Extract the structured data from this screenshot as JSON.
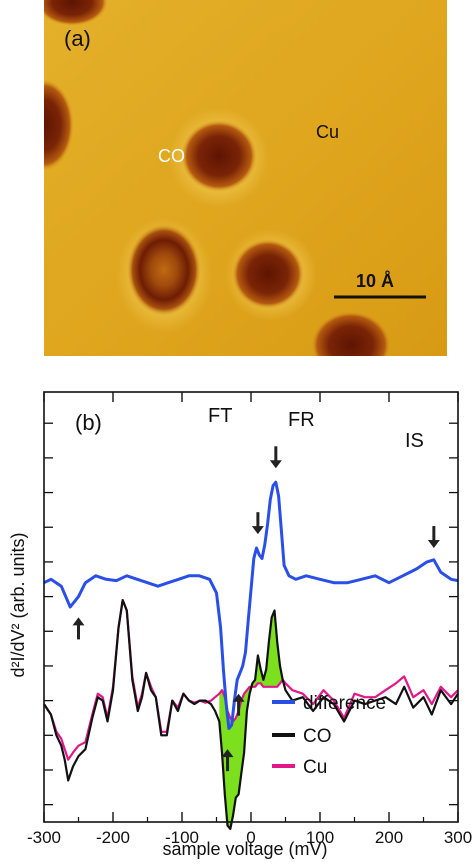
{
  "panel_a": {
    "label": "(a)",
    "co_label": "CO",
    "cu_label": "Cu",
    "scale_label": "10 Å",
    "colors": {
      "background": "#e0a81c",
      "molecule": "#8a2a08",
      "molecule_core": "#6a1a04"
    }
  },
  "chart_data": {
    "type": "line",
    "panel_label": "(b)",
    "xlabel": "sample voltage (mV)",
    "ylabel": "d²I/dV² (arb. units)",
    "xlim": [
      -300,
      300
    ],
    "ylim": [
      -3.0,
      3.2
    ],
    "x_ticks": [
      -300,
      -200,
      -100,
      0,
      100,
      200,
      300
    ],
    "annotations": [
      "FT",
      "FR",
      "IS"
    ],
    "legend": {
      "placement": "bottom-right",
      "entries": [
        "difference",
        "CO",
        "Cu"
      ]
    },
    "series": [
      {
        "name": "difference",
        "color": "#2a4fe6",
        "x": [
          -300,
          -290,
          -275,
          -262,
          -250,
          -240,
          -225,
          -210,
          -195,
          -180,
          -165,
          -150,
          -135,
          -120,
          -105,
          -90,
          -75,
          -60,
          -50,
          -44,
          -40,
          -36,
          -32,
          -28,
          -24,
          -20,
          -16,
          -12,
          -8,
          -4,
          0,
          4,
          8,
          12,
          16,
          20,
          24,
          28,
          32,
          36,
          40,
          44,
          48,
          55,
          65,
          80,
          100,
          120,
          140,
          160,
          180,
          200,
          220,
          240,
          255,
          265,
          275,
          290,
          300
        ],
        "y": [
          0.45,
          0.5,
          0.4,
          0.1,
          0.25,
          0.45,
          0.55,
          0.5,
          0.48,
          0.55,
          0.5,
          0.45,
          0.4,
          0.45,
          0.5,
          0.55,
          0.55,
          0.5,
          0.3,
          -0.2,
          -0.8,
          -1.3,
          -1.65,
          -1.6,
          -1.25,
          -0.95,
          -0.85,
          -0.75,
          -0.55,
          -0.1,
          0.35,
          0.8,
          0.95,
          0.85,
          0.8,
          1.0,
          1.3,
          1.65,
          1.85,
          1.9,
          1.7,
          1.2,
          0.7,
          0.55,
          0.5,
          0.55,
          0.5,
          0.45,
          0.45,
          0.5,
          0.55,
          0.45,
          0.55,
          0.65,
          0.75,
          0.78,
          0.6,
          0.5,
          0.48
        ]
      },
      {
        "name": "CO",
        "color": "#111111",
        "x": [
          -300,
          -290,
          -282,
          -275,
          -270,
          -265,
          -258,
          -250,
          -240,
          -230,
          -222,
          -215,
          -208,
          -200,
          -192,
          -186,
          -180,
          -172,
          -164,
          -158,
          -152,
          -145,
          -138,
          -130,
          -122,
          -114,
          -106,
          -98,
          -90,
          -82,
          -74,
          -66,
          -58,
          -52,
          -46,
          -42,
          -38,
          -34,
          -30,
          -26,
          -22,
          -18,
          -14,
          -10,
          -6,
          -2,
          2,
          6,
          10,
          14,
          18,
          22,
          26,
          30,
          34,
          38,
          42,
          46,
          50,
          60,
          75,
          90,
          105,
          120,
          135,
          150,
          165,
          180,
          195,
          210,
          222,
          235,
          250,
          262,
          275,
          290,
          300
        ],
        "y": [
          -1.3,
          -1.45,
          -1.75,
          -1.9,
          -2.1,
          -2.4,
          -2.2,
          -2.05,
          -1.95,
          -1.5,
          -1.2,
          -1.25,
          -1.55,
          -1.1,
          -0.2,
          0.2,
          0.05,
          -0.95,
          -1.4,
          -1.2,
          -0.85,
          -1.1,
          -1.2,
          -1.75,
          -1.75,
          -1.25,
          -1.4,
          -1.15,
          -1.25,
          -1.3,
          -1.25,
          -1.25,
          -1.3,
          -1.4,
          -1.55,
          -2.0,
          -2.6,
          -3.05,
          -3.1,
          -2.9,
          -2.65,
          -2.6,
          -2.3,
          -2.0,
          -1.4,
          -1.15,
          -1.0,
          -0.95,
          -0.6,
          -0.8,
          -0.95,
          -0.8,
          -0.4,
          -0.05,
          0.05,
          -0.4,
          -0.75,
          -0.95,
          -1.1,
          -1.25,
          -1.2,
          -1.4,
          -1.2,
          -1.3,
          -1.55,
          -1.25,
          -1.3,
          -1.25,
          -1.2,
          -1.3,
          -1.05,
          -1.35,
          -1.2,
          -1.45,
          -1.1,
          -1.3,
          -1.15
        ]
      },
      {
        "name": "Cu",
        "color": "#e2188a",
        "x": [
          -300,
          -290,
          -282,
          -275,
          -270,
          -265,
          -258,
          -250,
          -240,
          -230,
          -222,
          -215,
          -208,
          -200,
          -192,
          -186,
          -180,
          -172,
          -164,
          -158,
          -152,
          -145,
          -138,
          -130,
          -122,
          -114,
          -106,
          -98,
          -90,
          -82,
          -74,
          -66,
          -58,
          -52,
          -46,
          -42,
          -38,
          -34,
          -30,
          -26,
          -22,
          -18,
          -14,
          -10,
          -6,
          -2,
          2,
          6,
          10,
          14,
          18,
          22,
          26,
          30,
          34,
          38,
          42,
          46,
          50,
          60,
          75,
          90,
          105,
          120,
          135,
          150,
          165,
          180,
          195,
          210,
          222,
          235,
          250,
          262,
          275,
          290,
          300
        ],
        "y": [
          -1.3,
          -1.45,
          -1.7,
          -1.8,
          -1.95,
          -2.1,
          -2.0,
          -1.9,
          -1.85,
          -1.45,
          -1.15,
          -1.2,
          -1.5,
          -1.05,
          -0.2,
          0.2,
          0.05,
          -0.9,
          -1.35,
          -1.15,
          -0.85,
          -1.05,
          -1.2,
          -1.7,
          -1.7,
          -1.25,
          -1.35,
          -1.15,
          -1.25,
          -1.28,
          -1.25,
          -1.28,
          -1.25,
          -1.2,
          -1.15,
          -1.1,
          -1.2,
          -1.4,
          -1.5,
          -1.55,
          -1.5,
          -1.4,
          -1.25,
          -1.15,
          -1.1,
          -1.05,
          -1.05,
          -1.05,
          -1.0,
          -1.0,
          -1.05,
          -1.05,
          -1.05,
          -1.05,
          -1.05,
          -1.05,
          -1.0,
          -0.95,
          -1.0,
          -1.1,
          -1.15,
          -1.3,
          -1.1,
          -1.25,
          -1.5,
          -1.15,
          -1.2,
          -1.2,
          -1.1,
          -1.0,
          -0.9,
          -1.2,
          -1.1,
          -1.3,
          -1.05,
          -1.2,
          -1.1
        ]
      }
    ]
  }
}
